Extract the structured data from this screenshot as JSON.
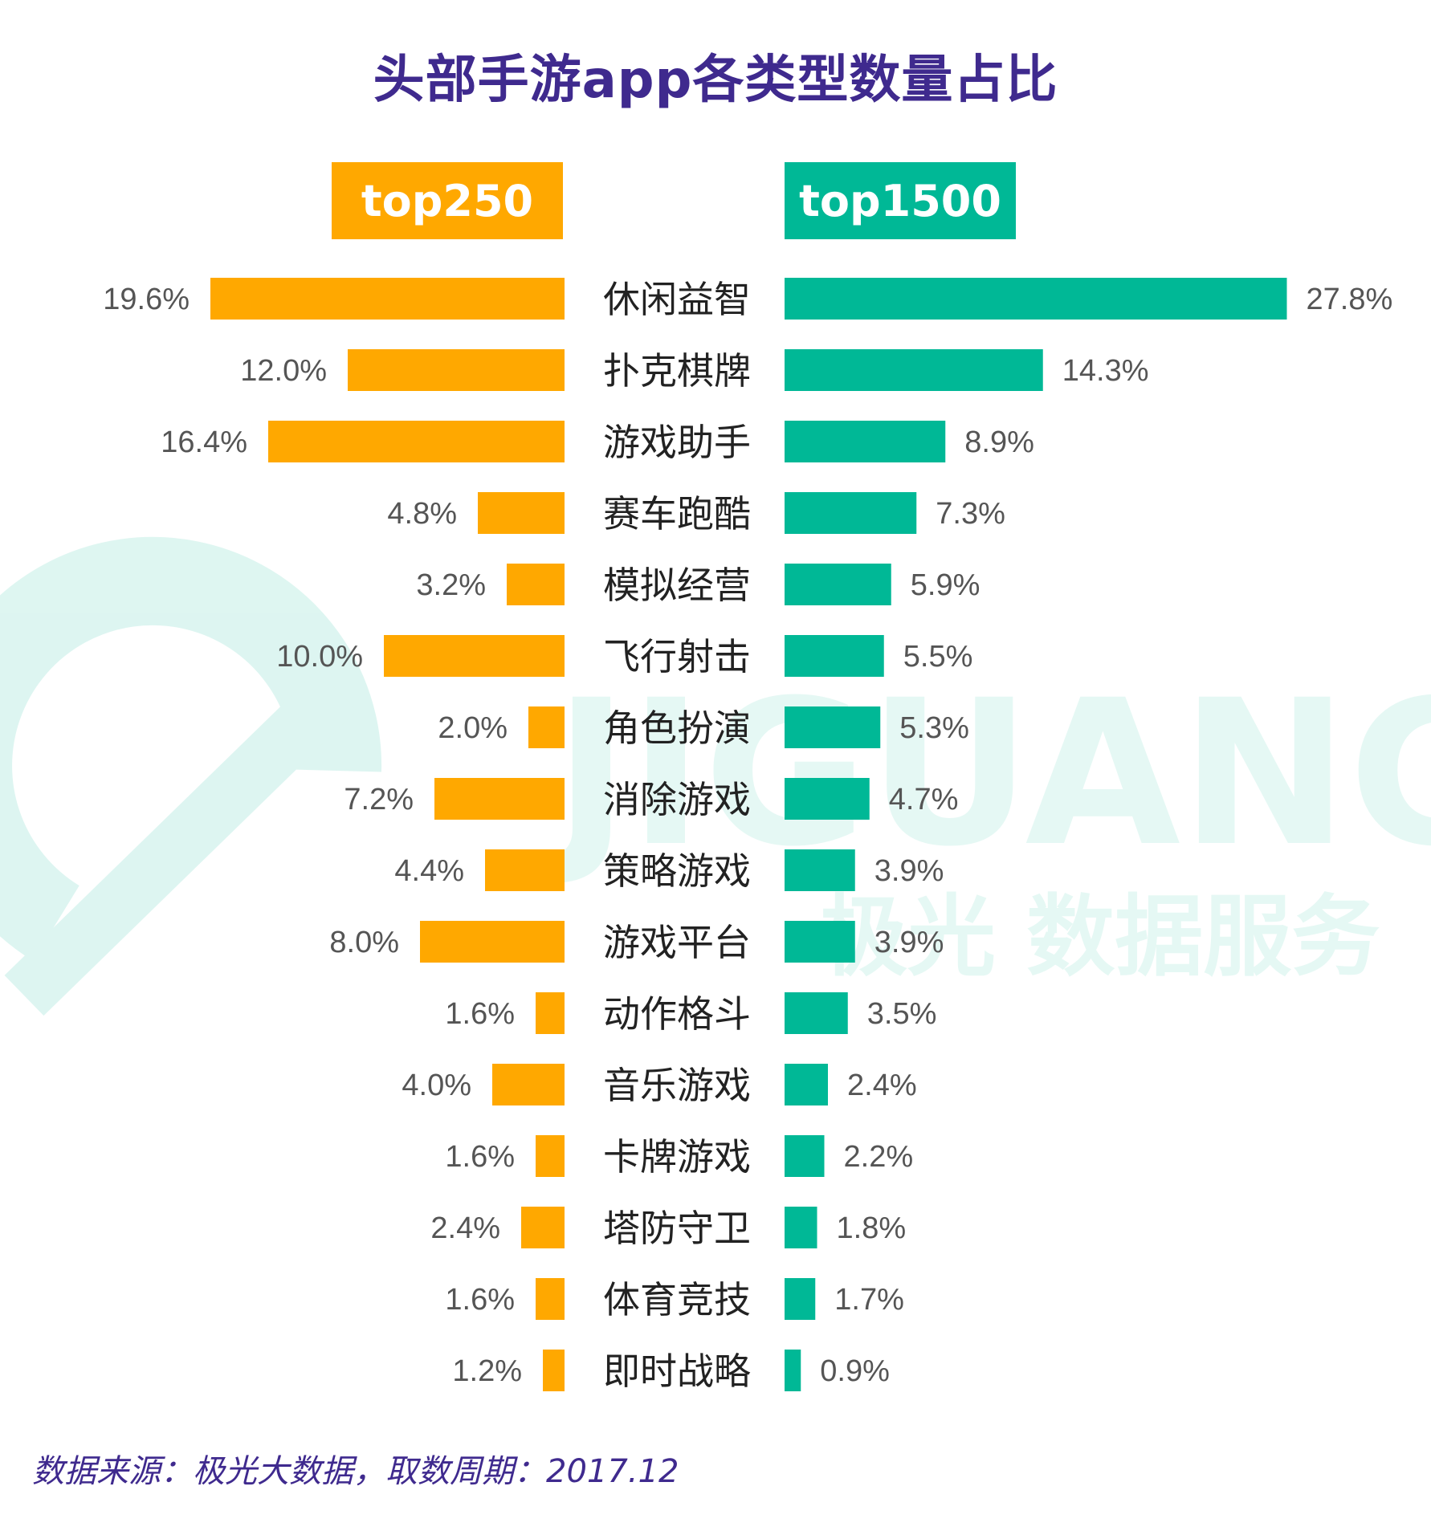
{
  "title": "头部手游app各类型数量占比",
  "source": "数据来源：极光大数据，取数周期：2017.12",
  "watermark": {
    "latin": "JIGUANG",
    "cn": "极光 数据服务"
  },
  "colors": {
    "left": "#ffa800",
    "right": "#00b896",
    "title": "#3f2a8e",
    "label": "#555555"
  },
  "chart_data": {
    "type": "bar",
    "orientation": "horizontal-butterfly",
    "categories": [
      "休闲益智",
      "扑克棋牌",
      "游戏助手",
      "赛车跑酷",
      "模拟经营",
      "飞行射击",
      "角色扮演",
      "消除游戏",
      "策略游戏",
      "游戏平台",
      "动作格斗",
      "音乐游戏",
      "卡牌游戏",
      "塔防守卫",
      "体育竞技",
      "即时战略"
    ],
    "series": [
      {
        "name": "top250",
        "values": [
          19.6,
          12.0,
          16.4,
          4.8,
          3.2,
          10.0,
          2.0,
          7.2,
          4.4,
          8.0,
          1.6,
          4.0,
          1.6,
          2.4,
          1.6,
          1.2
        ],
        "labels": [
          "19.6%",
          "12.0%",
          "16.4%",
          "4.8%",
          "3.2%",
          "10.0%",
          "2.0%",
          "7.2%",
          "4.4%",
          "8.0%",
          "1.6%",
          "4.0%",
          "1.6%",
          "2.4%",
          "1.6%",
          "1.2%"
        ]
      },
      {
        "name": "top1500",
        "values": [
          27.8,
          14.3,
          8.9,
          7.3,
          5.9,
          5.5,
          5.3,
          4.7,
          3.9,
          3.9,
          3.5,
          2.4,
          2.2,
          1.8,
          1.7,
          0.9
        ],
        "labels": [
          "27.8%",
          "14.3%",
          "8.9%",
          "7.3%",
          "5.9%",
          "5.5%",
          "5.3%",
          "4.7%",
          "3.9%",
          "3.9%",
          "3.5%",
          "2.4%",
          "2.2%",
          "1.8%",
          "1.7%",
          "0.9%"
        ]
      }
    ],
    "unit": "%",
    "grid": false
  }
}
